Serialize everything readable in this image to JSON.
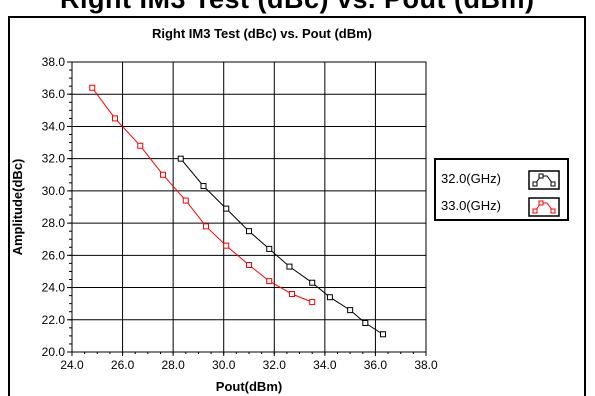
{
  "header_fragment": "Right IM3 Test (dBc) vs. Pout (dBm)",
  "chart_data": {
    "type": "line",
    "title": "Right IM3 Test (dBc) vs. Pout (dBm)",
    "xlabel": "Pout(dBm)",
    "ylabel": "Amplitude(dBc)",
    "xlim": [
      24.0,
      38.0
    ],
    "ylim": [
      20.0,
      38.0
    ],
    "x_ticks": [
      "24.0",
      "26.0",
      "28.0",
      "30.0",
      "32.0",
      "34.0",
      "36.0",
      "38.0"
    ],
    "y_ticks": [
      "20.0",
      "22.0",
      "24.0",
      "26.0",
      "28.0",
      "30.0",
      "32.0",
      "34.0",
      "36.0",
      "38.0"
    ],
    "grid": true,
    "legend_position": "right",
    "series": [
      {
        "name": "32.0(GHz)",
        "color": "#000000",
        "marker": "square",
        "x": [
          28.3,
          29.2,
          30.1,
          31.0,
          31.8,
          32.6,
          33.5,
          34.2,
          35.0,
          35.6,
          36.3
        ],
        "y": [
          32.0,
          30.3,
          28.9,
          27.5,
          26.4,
          25.3,
          24.3,
          23.4,
          22.6,
          21.8,
          21.1
        ]
      },
      {
        "name": "33.0(GHz)",
        "color": "#ff0000",
        "marker": "square",
        "x": [
          24.8,
          25.7,
          26.7,
          27.6,
          28.5,
          29.3,
          30.1,
          31.0,
          31.8,
          32.7,
          33.5
        ],
        "y": [
          36.4,
          34.5,
          32.8,
          31.0,
          29.4,
          27.8,
          26.6,
          25.4,
          24.4,
          23.6,
          23.1
        ]
      }
    ]
  }
}
